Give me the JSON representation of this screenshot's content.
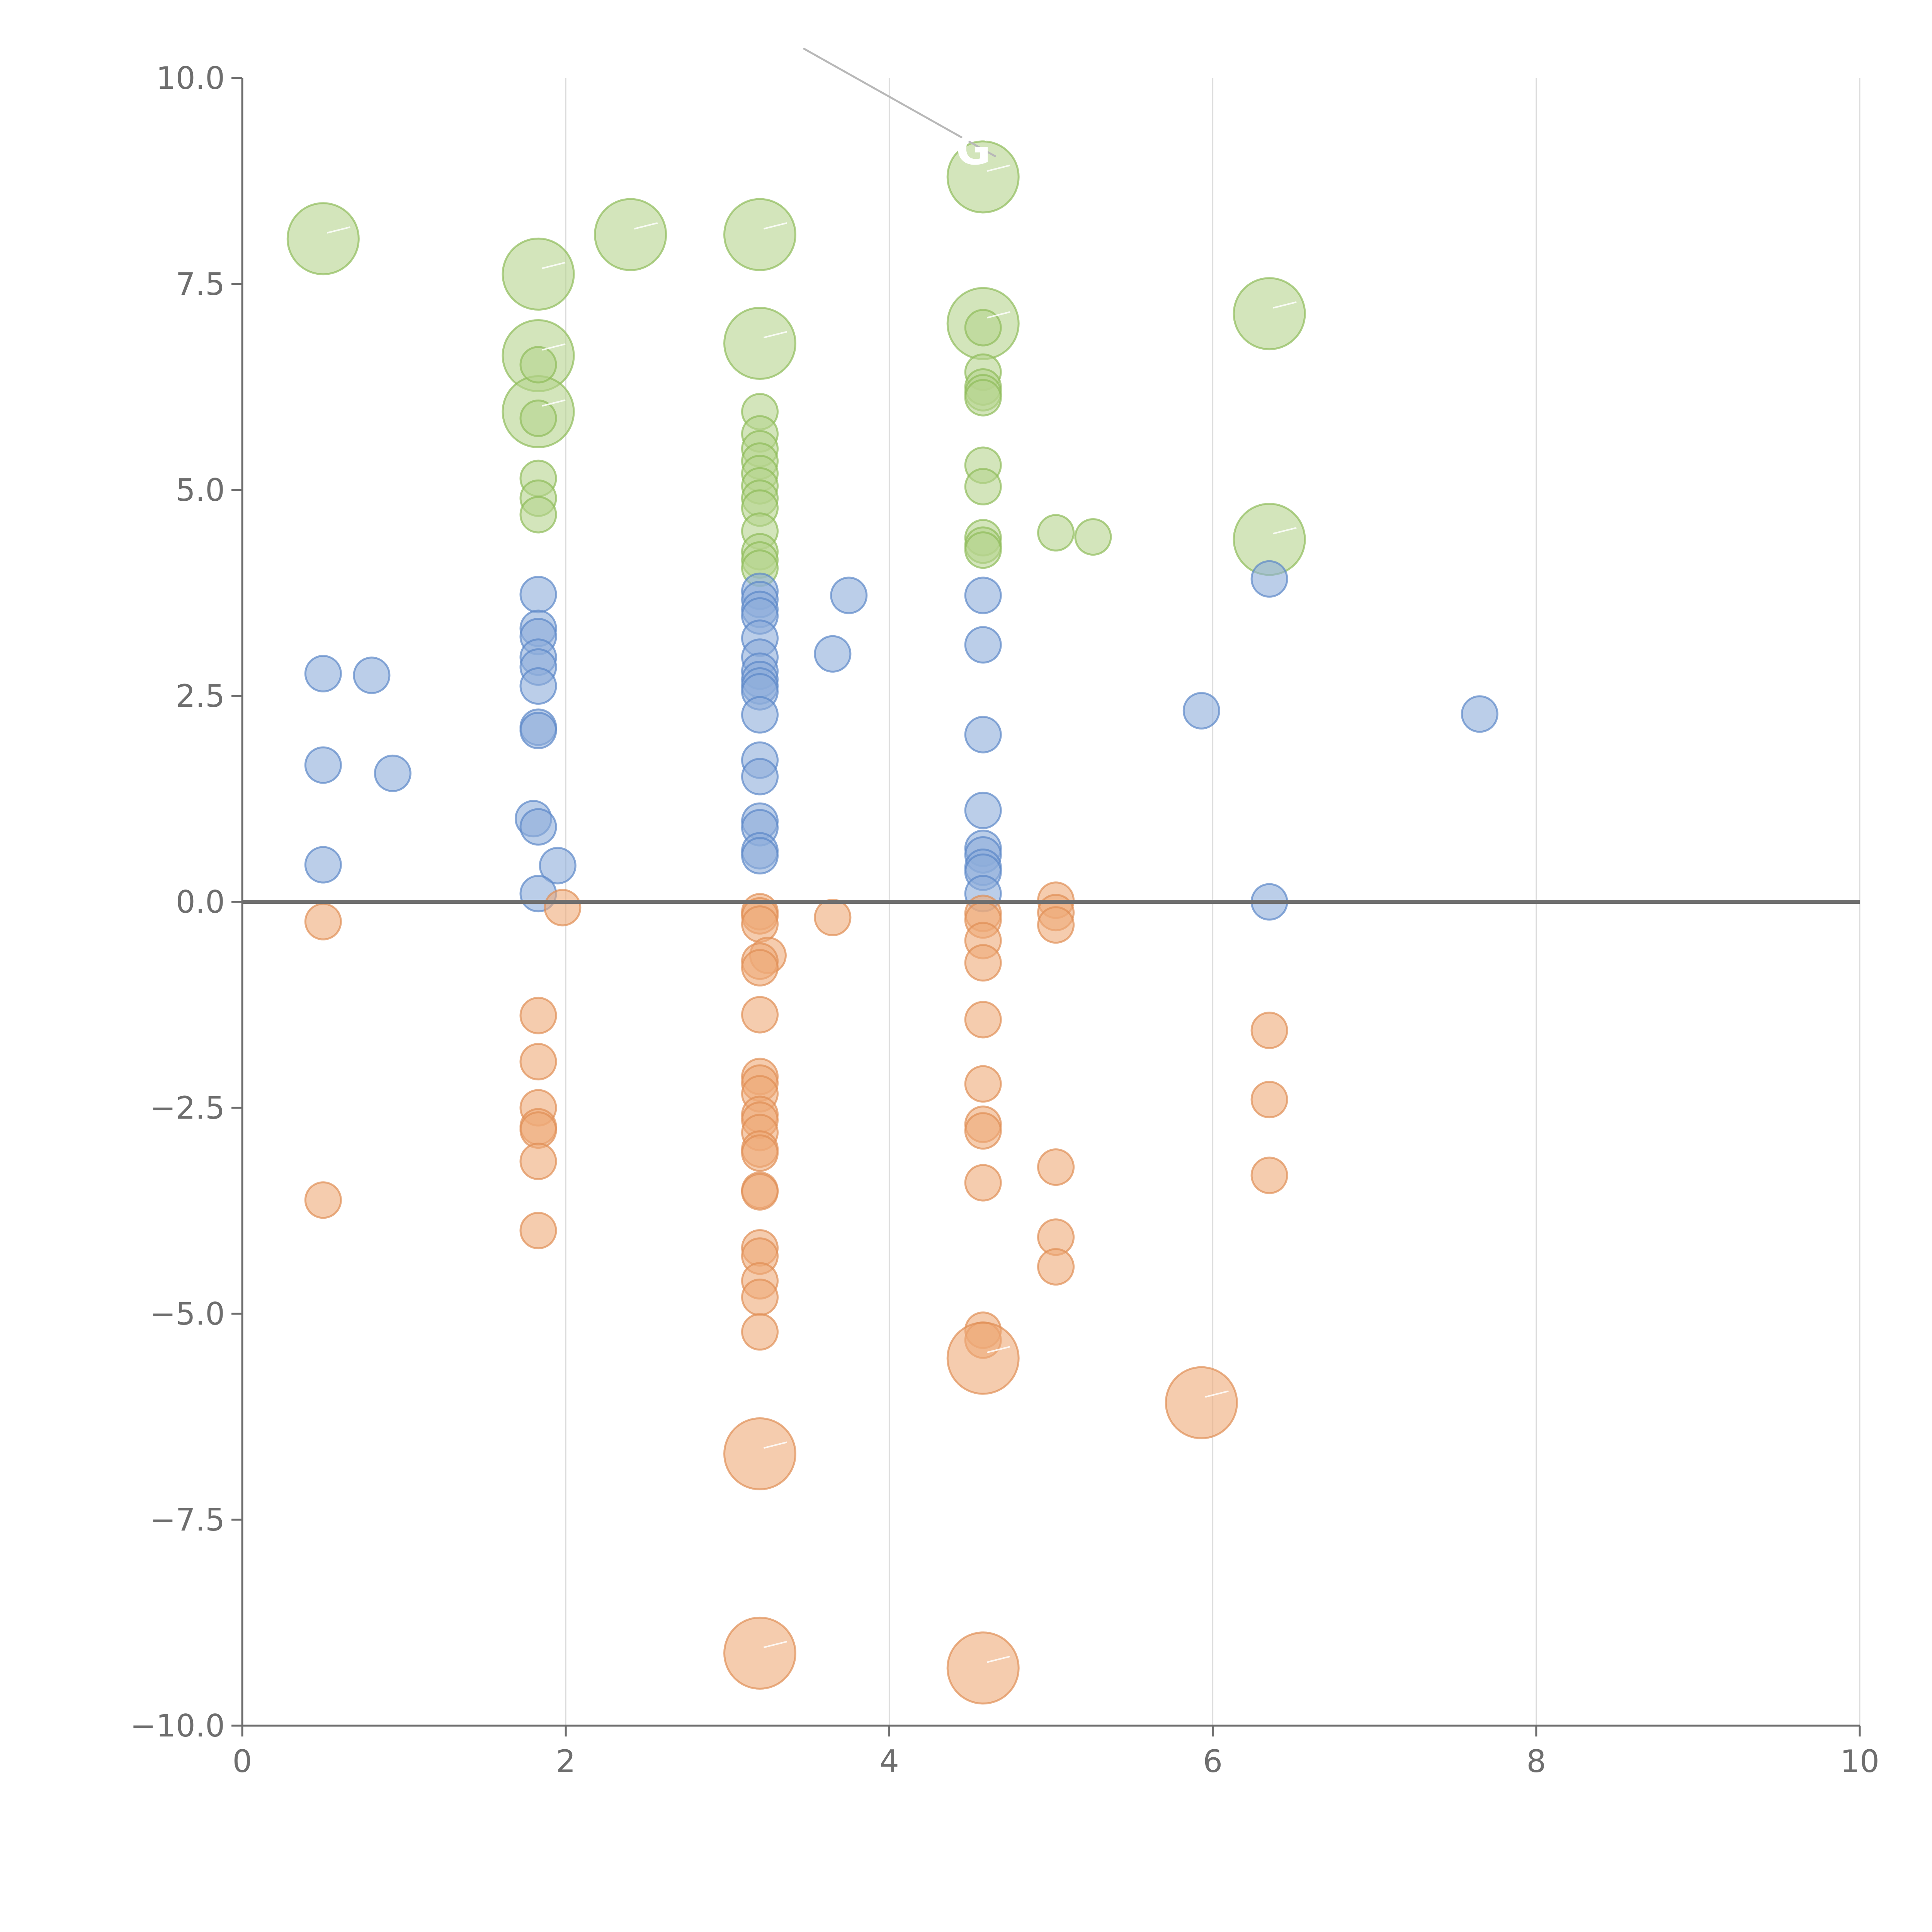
{
  "chart_data": {
    "type": "scatter",
    "title": "",
    "xlabel": "",
    "ylabel": "",
    "xlim": [
      0,
      10
    ],
    "ylim": [
      -10,
      10
    ],
    "x_ticks": [
      {
        "value": 0,
        "label": "0"
      },
      {
        "value": 2,
        "label": "2"
      },
      {
        "value": 4,
        "label": "4"
      },
      {
        "value": 6,
        "label": "6"
      },
      {
        "value": 8,
        "label": "8"
      },
      {
        "value": 10,
        "label": "10"
      }
    ],
    "y_ticks": [
      {
        "value": 10,
        "label": "10.0"
      },
      {
        "value": 7.5,
        "label": "7.5"
      },
      {
        "value": 5,
        "label": "5.0"
      },
      {
        "value": 2.5,
        "label": "2.5"
      },
      {
        "value": 0,
        "label": "0.0"
      },
      {
        "value": -2.5,
        "label": "−2.5"
      },
      {
        "value": -5,
        "label": "−5.0"
      },
      {
        "value": -7.5,
        "label": "−7.5"
      },
      {
        "value": -10,
        "label": "−10.0"
      }
    ],
    "vertical_grid": true,
    "horizontal_grid": false,
    "zero_line": true,
    "colors": {
      "green": {
        "fill": "#b5d48e",
        "stroke": "#8fbc5a"
      },
      "blue": {
        "fill": "#8eaddb",
        "stroke": "#5b87c7"
      },
      "orange": {
        "fill": "#eeaa78",
        "stroke": "#df8f55"
      }
    },
    "series": [
      {
        "color": "green",
        "points": [
          [
            0.5,
            8.05,
            "large"
          ],
          [
            1.83,
            7.62,
            "large"
          ],
          [
            2.4,
            8.1,
            "large"
          ],
          [
            3.2,
            8.1,
            "large"
          ],
          [
            4.58,
            8.8,
            "large"
          ],
          [
            1.83,
            6.63,
            "large"
          ],
          [
            3.2,
            6.78,
            "large"
          ],
          [
            4.58,
            7.02,
            "large"
          ],
          [
            6.35,
            7.14,
            "large"
          ],
          [
            1.83,
            5.95,
            "large"
          ],
          [
            6.35,
            4.4,
            "large"
          ],
          [
            1.83,
            6.52,
            "small"
          ],
          [
            1.83,
            5.87,
            "small"
          ],
          [
            1.83,
            5.14,
            "small"
          ],
          [
            1.83,
            4.9,
            "small"
          ],
          [
            1.83,
            4.7,
            "small"
          ],
          [
            3.2,
            5.95,
            "small"
          ],
          [
            3.2,
            5.68,
            "small"
          ],
          [
            3.2,
            5.5,
            "small"
          ],
          [
            3.2,
            5.35,
            "small"
          ],
          [
            3.2,
            5.2,
            "small"
          ],
          [
            3.2,
            5.05,
            "small"
          ],
          [
            3.2,
            4.9,
            "small"
          ],
          [
            3.2,
            4.78,
            "small"
          ],
          [
            3.2,
            4.5,
            "small"
          ],
          [
            3.2,
            4.25,
            "small"
          ],
          [
            3.2,
            4.15,
            "small"
          ],
          [
            3.2,
            4.05,
            "small"
          ],
          [
            4.58,
            6.97,
            "small"
          ],
          [
            4.58,
            6.43,
            "small"
          ],
          [
            4.58,
            6.25,
            "small"
          ],
          [
            4.58,
            6.18,
            "small"
          ],
          [
            4.58,
            6.12,
            "small"
          ],
          [
            4.58,
            5.3,
            "small"
          ],
          [
            4.58,
            5.04,
            "small"
          ],
          [
            4.58,
            4.42,
            "small"
          ],
          [
            4.58,
            4.33,
            "small"
          ],
          [
            4.58,
            4.27,
            "small"
          ],
          [
            5.03,
            4.48,
            "small"
          ],
          [
            5.26,
            4.43,
            "small"
          ]
        ]
      },
      {
        "color": "blue",
        "points": [
          [
            0.5,
            2.77,
            "small"
          ],
          [
            0.8,
            2.75,
            "small"
          ],
          [
            0.5,
            1.66,
            "small"
          ],
          [
            0.93,
            1.56,
            "small"
          ],
          [
            0.5,
            0.45,
            "small"
          ],
          [
            1.83,
            3.73,
            "small"
          ],
          [
            1.83,
            3.32,
            "small"
          ],
          [
            1.83,
            3.22,
            "small"
          ],
          [
            1.83,
            2.97,
            "small"
          ],
          [
            1.83,
            2.85,
            "small"
          ],
          [
            1.83,
            2.62,
            "small"
          ],
          [
            1.83,
            2.12,
            "small"
          ],
          [
            1.83,
            2.08,
            "small"
          ],
          [
            1.8,
            1.01,
            "small"
          ],
          [
            1.83,
            0.91,
            "small"
          ],
          [
            1.95,
            0.44,
            "small"
          ],
          [
            1.83,
            0.1,
            "small"
          ],
          [
            3.2,
            3.77,
            "small"
          ],
          [
            3.2,
            3.67,
            "small"
          ],
          [
            3.2,
            3.55,
            "small"
          ],
          [
            3.2,
            3.47,
            "small"
          ],
          [
            3.2,
            3.2,
            "small"
          ],
          [
            3.2,
            2.97,
            "small"
          ],
          [
            3.2,
            2.8,
            "small"
          ],
          [
            3.2,
            2.7,
            "small"
          ],
          [
            3.2,
            2.62,
            "small"
          ],
          [
            3.2,
            2.55,
            "small"
          ],
          [
            3.2,
            2.27,
            "small"
          ],
          [
            3.2,
            1.72,
            "small"
          ],
          [
            3.2,
            1.52,
            "small"
          ],
          [
            3.2,
            0.98,
            "small"
          ],
          [
            3.2,
            0.9,
            "small"
          ],
          [
            3.2,
            0.62,
            "small"
          ],
          [
            3.2,
            0.56,
            "small"
          ],
          [
            3.75,
            3.72,
            "small"
          ],
          [
            3.65,
            3.01,
            "small"
          ],
          [
            4.58,
            3.72,
            "small"
          ],
          [
            4.58,
            3.12,
            "small"
          ],
          [
            4.58,
            2.03,
            "small"
          ],
          [
            4.58,
            1.11,
            "small"
          ],
          [
            4.58,
            0.65,
            "small"
          ],
          [
            4.58,
            0.57,
            "small"
          ],
          [
            4.58,
            0.42,
            "small"
          ],
          [
            4.58,
            0.36,
            "small"
          ],
          [
            4.58,
            0.1,
            "small"
          ],
          [
            5.93,
            2.32,
            "small"
          ],
          [
            6.35,
            3.92,
            "small"
          ],
          [
            6.35,
            0.0,
            "small"
          ],
          [
            7.65,
            2.28,
            "small"
          ]
        ]
      },
      {
        "color": "orange",
        "points": [
          [
            0.5,
            -0.24,
            "small"
          ],
          [
            0.5,
            -3.62,
            "small"
          ],
          [
            1.83,
            -1.38,
            "small"
          ],
          [
            1.83,
            -1.94,
            "small"
          ],
          [
            1.83,
            -2.5,
            "small"
          ],
          [
            1.83,
            -2.73,
            "small"
          ],
          [
            1.83,
            -2.77,
            "small"
          ],
          [
            1.83,
            -3.15,
            "small"
          ],
          [
            1.83,
            -3.99,
            "small"
          ],
          [
            1.98,
            -0.07,
            "small"
          ],
          [
            3.2,
            -0.12,
            "small"
          ],
          [
            3.2,
            -0.17,
            "small"
          ],
          [
            3.2,
            -0.27,
            "small"
          ],
          [
            3.25,
            -0.65,
            "small"
          ],
          [
            3.2,
            -0.72,
            "small"
          ],
          [
            3.2,
            -0.8,
            "small"
          ],
          [
            3.2,
            -1.37,
            "small"
          ],
          [
            3.2,
            -2.12,
            "small"
          ],
          [
            3.2,
            -2.2,
            "small"
          ],
          [
            3.2,
            -2.33,
            "small"
          ],
          [
            3.2,
            -2.58,
            "small"
          ],
          [
            3.2,
            -2.65,
            "small"
          ],
          [
            3.2,
            -2.8,
            "small"
          ],
          [
            3.2,
            -3.0,
            "small"
          ],
          [
            3.2,
            -3.05,
            "small"
          ],
          [
            3.2,
            -3.5,
            "small"
          ],
          [
            3.2,
            -3.52,
            "small"
          ],
          [
            3.2,
            -4.2,
            "small"
          ],
          [
            3.2,
            -4.3,
            "small"
          ],
          [
            3.2,
            -4.6,
            "small"
          ],
          [
            3.2,
            -4.8,
            "small"
          ],
          [
            3.2,
            -5.22,
            "small"
          ],
          [
            3.65,
            -0.19,
            "small"
          ],
          [
            4.58,
            -0.14,
            "small"
          ],
          [
            4.58,
            -0.22,
            "small"
          ],
          [
            4.58,
            -0.47,
            "small"
          ],
          [
            4.58,
            -0.74,
            "small"
          ],
          [
            4.58,
            -1.43,
            "small"
          ],
          [
            4.58,
            -2.21,
            "small"
          ],
          [
            4.58,
            -2.7,
            "small"
          ],
          [
            4.58,
            -2.78,
            "small"
          ],
          [
            4.58,
            -3.41,
            "small"
          ],
          [
            4.58,
            -5.2,
            "small"
          ],
          [
            4.58,
            -5.32,
            "small"
          ],
          [
            5.03,
            0.02,
            "small"
          ],
          [
            5.03,
            -0.13,
            "small"
          ],
          [
            5.03,
            -0.28,
            "small"
          ],
          [
            5.03,
            -3.22,
            "small"
          ],
          [
            5.03,
            -4.07,
            "small"
          ],
          [
            5.03,
            -4.43,
            "small"
          ],
          [
            6.35,
            -1.56,
            "small"
          ],
          [
            6.35,
            -2.4,
            "small"
          ],
          [
            6.35,
            -3.32,
            "small"
          ],
          [
            4.58,
            -5.54,
            "large"
          ],
          [
            5.93,
            -6.08,
            "large"
          ],
          [
            3.2,
            -6.7,
            "large"
          ],
          [
            3.2,
            -9.12,
            "large"
          ],
          [
            4.58,
            -9.3,
            "large"
          ]
        ]
      }
    ],
    "annotations": [
      {
        "text": "G",
        "x": 4.52,
        "y": 9.0
      }
    ]
  }
}
